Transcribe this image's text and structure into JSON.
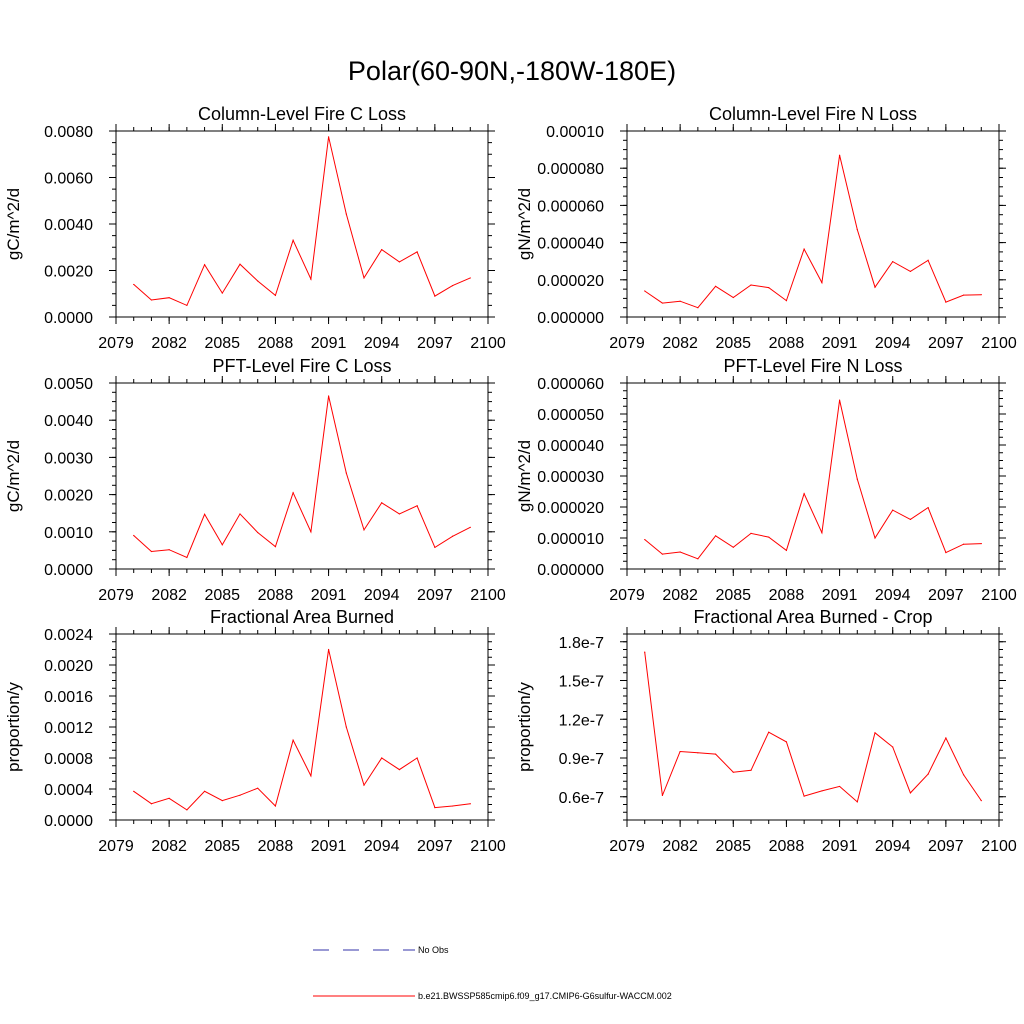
{
  "figure": {
    "title": "Polar(60-90N,-180W-180E)",
    "colors": {
      "model_line": "#ff0000",
      "obs_line": "#3333aa",
      "axes": "#000000"
    },
    "legend": {
      "placement": "bottom-center",
      "entries": [
        {
          "label": "No Obs",
          "style": "dashed",
          "color": "#3333aa"
        },
        {
          "label": "b.e21.BWSSP585cmip6.f09_g17.CMIP6-G6sulfur-WACCM.002",
          "style": "solid",
          "color": "#ff0000"
        }
      ]
    }
  },
  "chart_data": [
    {
      "type": "line",
      "title": "Column-Level Fire C Loss",
      "ylabel": "gC/m^2/d",
      "xlim": [
        2079,
        2100
      ],
      "ylim": [
        0,
        0.008
      ],
      "xticks": [
        2079,
        2082,
        2085,
        2088,
        2091,
        2094,
        2097,
        2100
      ],
      "xtick_labels": [
        "2079",
        "2082",
        "2085",
        "2088",
        "2091",
        "2094",
        "2097",
        "2100"
      ],
      "yticks": [
        0,
        0.002,
        0.004,
        0.006,
        0.008
      ],
      "ytick_labels": [
        "0.0000",
        "0.0020",
        "0.0040",
        "0.0060",
        "0.0080"
      ],
      "yminor_step": 0.0005,
      "x": [
        2080,
        2081,
        2082,
        2083,
        2084,
        2085,
        2086,
        2087,
        2088,
        2089,
        2090,
        2091,
        2092,
        2093,
        2094,
        2095,
        2096,
        2097,
        2098,
        2099
      ],
      "series": [
        {
          "values": [
            0.0014,
            0.00073,
            0.00083,
            0.0005,
            0.00225,
            0.00103,
            0.00227,
            0.00155,
            0.00093,
            0.0033,
            0.00163,
            0.00775,
            0.00443,
            0.00168,
            0.0029,
            0.00237,
            0.0028,
            0.0009,
            0.00135,
            0.00168
          ],
          "color": "#ff0000"
        }
      ],
      "grid": false
    },
    {
      "type": "line",
      "title": "Column-Level Fire N Loss",
      "ylabel": "gN/m^2/d",
      "xlim": [
        2079,
        2100
      ],
      "ylim": [
        0,
        0.0001
      ],
      "xticks": [
        2079,
        2082,
        2085,
        2088,
        2091,
        2094,
        2097,
        2100
      ],
      "xtick_labels": [
        "2079",
        "2082",
        "2085",
        "2088",
        "2091",
        "2094",
        "2097",
        "2100"
      ],
      "yticks": [
        0,
        2e-05,
        4e-05,
        6e-05,
        8e-05,
        0.0001
      ],
      "ytick_labels": [
        "0.000000",
        "0.000020",
        "0.000040",
        "0.000060",
        "0.000080",
        "0.00010"
      ],
      "yminor_step": 5e-06,
      "x": [
        2080,
        2081,
        2082,
        2083,
        2084,
        2085,
        2086,
        2087,
        2088,
        2089,
        2090,
        2091,
        2092,
        2093,
        2094,
        2095,
        2096,
        2097,
        2098,
        2099
      ],
      "series": [
        {
          "values": [
            1.4e-05,
            7.5e-06,
            8.5e-06,
            5e-06,
            1.65e-05,
            1.05e-05,
            1.72e-05,
            1.58e-05,
            8.8e-06,
            3.65e-05,
            1.85e-05,
            8.7e-05,
            4.7e-05,
            1.6e-05,
            2.98e-05,
            2.45e-05,
            3.05e-05,
            8e-06,
            1.18e-05,
            1.2e-05
          ],
          "color": "#ff0000"
        }
      ],
      "grid": false
    },
    {
      "type": "line",
      "title": "PFT-Level Fire C Loss",
      "ylabel": "gC/m^2/d",
      "xlim": [
        2079,
        2100
      ],
      "ylim": [
        0,
        0.005
      ],
      "xticks": [
        2079,
        2082,
        2085,
        2088,
        2091,
        2094,
        2097,
        2100
      ],
      "xtick_labels": [
        "2079",
        "2082",
        "2085",
        "2088",
        "2091",
        "2094",
        "2097",
        "2100"
      ],
      "yticks": [
        0,
        0.001,
        0.002,
        0.003,
        0.004,
        0.005
      ],
      "ytick_labels": [
        "0.0000",
        "0.0010",
        "0.0020",
        "0.0030",
        "0.0040",
        "0.0050"
      ],
      "yminor_step": 0.00025,
      "x": [
        2080,
        2081,
        2082,
        2083,
        2084,
        2085,
        2086,
        2087,
        2088,
        2089,
        2090,
        2091,
        2092,
        2093,
        2094,
        2095,
        2096,
        2097,
        2098,
        2099
      ],
      "series": [
        {
          "values": [
            0.0009,
            0.00047,
            0.00052,
            0.00031,
            0.00147,
            0.00065,
            0.00148,
            0.00098,
            0.0006,
            0.00205,
            0.001,
            0.00465,
            0.00258,
            0.00105,
            0.00178,
            0.00148,
            0.0017,
            0.00058,
            0.00088,
            0.00112
          ],
          "color": "#ff0000"
        }
      ],
      "grid": false
    },
    {
      "type": "line",
      "title": "PFT-Level Fire N Loss",
      "ylabel": "gN/m^2/d",
      "xlim": [
        2079,
        2100
      ],
      "ylim": [
        0,
        6e-05
      ],
      "xticks": [
        2079,
        2082,
        2085,
        2088,
        2091,
        2094,
        2097,
        2100
      ],
      "xtick_labels": [
        "2079",
        "2082",
        "2085",
        "2088",
        "2091",
        "2094",
        "2097",
        "2100"
      ],
      "yticks": [
        0,
        1e-05,
        2e-05,
        3e-05,
        4e-05,
        5e-05,
        6e-05
      ],
      "ytick_labels": [
        "0.000000",
        "0.000010",
        "0.000020",
        "0.000030",
        "0.000040",
        "0.000050",
        "0.000060"
      ],
      "yminor_step": 2.5e-06,
      "x": [
        2080,
        2081,
        2082,
        2083,
        2084,
        2085,
        2086,
        2087,
        2088,
        2089,
        2090,
        2091,
        2092,
        2093,
        2094,
        2095,
        2096,
        2097,
        2098,
        2099
      ],
      "series": [
        {
          "values": [
            9.5e-06,
            4.8e-06,
            5.5e-06,
            3.3e-06,
            1.07e-05,
            7e-06,
            1.15e-05,
            1.03e-05,
            6e-06,
            2.43e-05,
            1.17e-05,
            5.45e-05,
            2.9e-05,
            1e-05,
            1.9e-05,
            1.6e-05,
            1.98e-05,
            5.3e-06,
            8e-06,
            8.2e-06
          ],
          "color": "#ff0000"
        }
      ],
      "grid": false
    },
    {
      "type": "line",
      "title": "Fractional Area Burned",
      "ylabel": "proportion/y",
      "xlim": [
        2079,
        2100
      ],
      "ylim": [
        0,
        0.0024
      ],
      "xticks": [
        2079,
        2082,
        2085,
        2088,
        2091,
        2094,
        2097,
        2100
      ],
      "xtick_labels": [
        "2079",
        "2082",
        "2085",
        "2088",
        "2091",
        "2094",
        "2097",
        "2100"
      ],
      "yticks": [
        0,
        0.0004,
        0.0008,
        0.0012,
        0.0016,
        0.002,
        0.0024
      ],
      "ytick_labels": [
        "0.0000",
        "0.0004",
        "0.0008",
        "0.0012",
        "0.0016",
        "0.0020",
        "0.0024"
      ],
      "yminor_step": 0.0001,
      "x": [
        2080,
        2081,
        2082,
        2083,
        2084,
        2085,
        2086,
        2087,
        2088,
        2089,
        2090,
        2091,
        2092,
        2093,
        2094,
        2095,
        2096,
        2097,
        2098,
        2099
      ],
      "series": [
        {
          "values": [
            0.00037,
            0.00021,
            0.00028,
            0.00013,
            0.00037,
            0.00025,
            0.00032,
            0.00041,
            0.00018,
            0.00103,
            0.00057,
            0.0022,
            0.0012,
            0.00045,
            0.0008,
            0.00065,
            0.0008,
            0.00016,
            0.00018,
            0.00021
          ],
          "color": "#ff0000"
        }
      ],
      "grid": false
    },
    {
      "type": "line",
      "title": "Fractional Area Burned - Crop",
      "ylabel": "proportion/y",
      "xlim": [
        2079,
        2100
      ],
      "ylim": [
        4.2e-08,
        1.86e-07
      ],
      "xticks": [
        2079,
        2082,
        2085,
        2088,
        2091,
        2094,
        2097,
        2100
      ],
      "xtick_labels": [
        "2079",
        "2082",
        "2085",
        "2088",
        "2091",
        "2094",
        "2097",
        "2100"
      ],
      "yticks": [
        6e-08,
        9e-08,
        1.2e-07,
        1.5e-07,
        1.8e-07
      ],
      "ytick_labels": [
        "0.6e-7",
        "0.9e-7",
        "1.2e-7",
        "1.5e-7",
        "1.8e-7"
      ],
      "yminor_step": 6e-09,
      "x": [
        2080,
        2081,
        2082,
        2083,
        2084,
        2085,
        2086,
        2087,
        2088,
        2089,
        2090,
        2091,
        2092,
        2093,
        2094,
        2095,
        2096,
        2097,
        2098,
        2099
      ],
      "series": [
        {
          "values": [
            1.72e-07,
            6.1e-08,
            9.5e-08,
            9.4e-08,
            9.3e-08,
            7.9e-08,
            8.05e-08,
            1.1e-07,
            1.025e-07,
            6.05e-08,
            6.45e-08,
            6.8e-08,
            5.6e-08,
            1.095e-07,
            9.85e-08,
            6.3e-08,
            7.75e-08,
            1.055e-07,
            7.7e-08,
            5.7e-08
          ],
          "color": "#ff0000"
        }
      ],
      "grid": false
    }
  ]
}
